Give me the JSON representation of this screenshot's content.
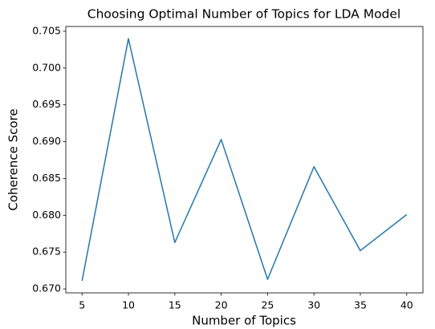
{
  "chart_data": {
    "type": "line",
    "title": "Choosing Optimal Number of Topics for LDA Model",
    "xlabel": "Number of Topics",
    "ylabel": "Coherence Score",
    "x": [
      5,
      10,
      15,
      20,
      25,
      30,
      35,
      40
    ],
    "series": [
      {
        "name": null,
        "color": "#1f77b4",
        "values": [
          0.6711,
          0.704,
          0.6763,
          0.6903,
          0.6713,
          0.6866,
          0.6752,
          0.6801
        ]
      }
    ],
    "xlim": [
      3.25,
      41.75
    ],
    "xticks": [
      5,
      10,
      15,
      20,
      25,
      30,
      35,
      40
    ],
    "ylim": [
      0.66946,
      0.70565
    ],
    "yticks": [
      {
        "value": 0.67,
        "label": "0.670"
      },
      0.675,
      {
        "value": 0.68,
        "label": "0.680"
      },
      0.685,
      {
        "value": 0.69,
        "label": "0.690"
      },
      0.695,
      {
        "value": 0.7,
        "label": "0.700"
      },
      0.705
    ],
    "grid": false
  }
}
